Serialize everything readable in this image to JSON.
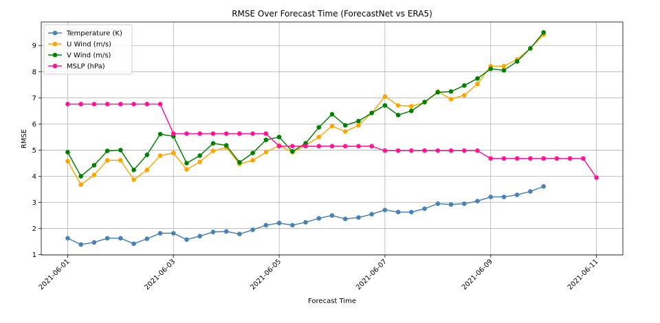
{
  "chart_data": {
    "type": "line",
    "title": "RMSE Over Forecast Time (ForecastNet vs ERA5)",
    "x_label": "Forecast Time",
    "y_label": "RMSE",
    "x": [
      "2021-06-01T00:00",
      "2021-06-01T06:00",
      "2021-06-01T12:00",
      "2021-06-01T18:00",
      "2021-06-02T00:00",
      "2021-06-02T06:00",
      "2021-06-02T12:00",
      "2021-06-02T18:00",
      "2021-06-03T00:00",
      "2021-06-03T06:00",
      "2021-06-03T12:00",
      "2021-06-03T18:00",
      "2021-06-04T00:00",
      "2021-06-04T06:00",
      "2021-06-04T12:00",
      "2021-06-04T18:00",
      "2021-06-05T00:00",
      "2021-06-05T06:00",
      "2021-06-05T12:00",
      "2021-06-05T18:00",
      "2021-06-06T00:00",
      "2021-06-06T06:00",
      "2021-06-06T12:00",
      "2021-06-06T18:00",
      "2021-06-07T00:00",
      "2021-06-07T06:00",
      "2021-06-07T12:00",
      "2021-06-07T18:00",
      "2021-06-08T00:00",
      "2021-06-08T06:00",
      "2021-06-08T12:00",
      "2021-06-08T18:00",
      "2021-06-09T00:00",
      "2021-06-09T06:00",
      "2021-06-09T12:00",
      "2021-06-09T18:00",
      "2021-06-10T00:00",
      "2021-06-10T06:00",
      "2021-06-10T12:00",
      "2021-06-10T18:00",
      "2021-06-11T00:00"
    ],
    "series": [
      {
        "name": "Temperature (K)",
        "color": "#4682b4",
        "values": [
          1.63,
          1.39,
          1.47,
          1.63,
          1.63,
          1.42,
          1.61,
          1.82,
          1.82,
          1.58,
          1.71,
          1.87,
          1.89,
          1.79,
          1.95,
          2.13,
          2.21,
          2.13,
          2.24,
          2.39,
          2.5,
          2.37,
          2.42,
          2.55,
          2.71,
          2.63,
          2.63,
          2.76,
          2.95,
          2.92,
          2.95,
          3.05,
          3.21,
          3.21,
          3.29,
          3.42,
          3.61,
          null,
          null,
          null,
          null
        ]
      },
      {
        "name": "U Wind (m/s)",
        "color": "#ffa500",
        "values": [
          4.58,
          3.68,
          4.05,
          4.61,
          4.61,
          3.87,
          4.24,
          4.79,
          4.89,
          4.26,
          4.55,
          4.97,
          5.1,
          4.47,
          4.61,
          4.92,
          5.18,
          4.92,
          5.18,
          5.5,
          5.92,
          5.71,
          5.95,
          6.42,
          7.05,
          6.71,
          6.68,
          6.82,
          7.24,
          6.95,
          7.1,
          7.53,
          8.21,
          8.21,
          8.47,
          8.89,
          9.42,
          null,
          null,
          null,
          null
        ]
      },
      {
        "name": "V Wind (m/s)",
        "color": "#008000",
        "values": [
          4.92,
          4.0,
          4.42,
          4.97,
          5.0,
          4.24,
          4.82,
          5.61,
          5.53,
          4.5,
          4.79,
          5.26,
          5.18,
          4.53,
          4.89,
          5.39,
          5.5,
          4.95,
          5.26,
          5.87,
          6.37,
          5.95,
          6.11,
          6.42,
          6.71,
          6.34,
          6.5,
          6.84,
          7.21,
          7.24,
          7.47,
          7.74,
          8.11,
          8.05,
          8.39,
          8.89,
          9.5,
          null,
          null,
          null,
          null
        ]
      },
      {
        "name": "MSLP (hPa)",
        "color": "#ff1493",
        "values": [
          6.76,
          6.76,
          6.76,
          6.76,
          6.76,
          6.76,
          6.76,
          6.76,
          5.63,
          5.63,
          5.63,
          5.63,
          5.63,
          5.63,
          5.63,
          5.63,
          5.15,
          5.15,
          5.15,
          5.15,
          5.15,
          5.15,
          5.15,
          5.15,
          4.98,
          4.98,
          4.98,
          4.98,
          4.98,
          4.98,
          4.98,
          4.98,
          4.68,
          4.68,
          4.68,
          4.68,
          4.68,
          4.68,
          4.68,
          4.68,
          3.95
        ]
      }
    ],
    "xlim": [
      "2021-05-31T12:00",
      "2021-06-11T12:00"
    ],
    "xticks": [
      "2021-06-01",
      "2021-06-03",
      "2021-06-05",
      "2021-06-07",
      "2021-06-09",
      "2021-06-11"
    ],
    "ylim": [
      0.99,
      9.9
    ],
    "yticks": [
      1,
      2,
      3,
      4,
      5,
      6,
      7,
      8,
      9
    ],
    "grid": true,
    "legend": "upper-left"
  }
}
